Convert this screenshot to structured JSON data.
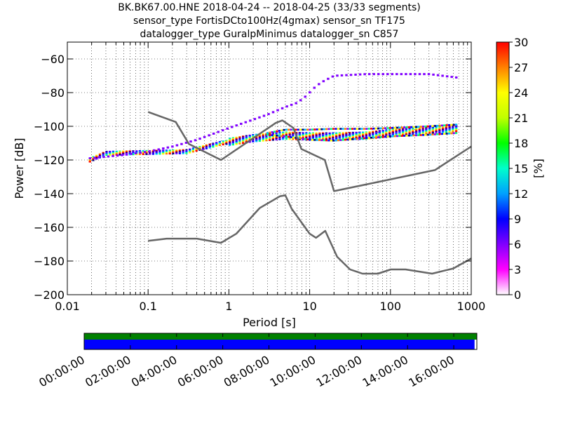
{
  "title": {
    "line1": "BK.BK67.00.HNE   2018-04-24 -- 2018-04-25  (33/33 segments)",
    "line2": "sensor_type FortisDCto100Hz(4gmax) sensor_sn TF175",
    "line3": "datalogger_type GuralpMinimus datalogger_sn C857"
  },
  "chart_data": {
    "type": "heatmap",
    "xlabel": "Period [s]",
    "ylabel": "Power [dB]",
    "xscale": "log",
    "xlim": [
      0.01,
      1000
    ],
    "ylim": [
      -200,
      -50
    ],
    "xticks": [
      0.01,
      0.1,
      1,
      10,
      100,
      1000
    ],
    "xtick_labels": [
      "0.01",
      "0.1",
      "1",
      "10",
      "100",
      "1000"
    ],
    "yticks": [
      -200,
      -180,
      -160,
      -140,
      -120,
      -100,
      -80,
      -60
    ],
    "ytick_labels": [
      "−200",
      "−180",
      "−160",
      "−140",
      "−120",
      "−100",
      "−80",
      "−60"
    ],
    "grid": true,
    "colorbar": {
      "label": "[%]",
      "range": [
        0,
        30
      ],
      "ticks": [
        0,
        3,
        6,
        9,
        12,
        15,
        18,
        21,
        24,
        27,
        30
      ],
      "colors": [
        "#ffffff",
        "#ff00ff",
        "#8000ff",
        "#0000ff",
        "#00a0ff",
        "#00ffcc",
        "#00ff00",
        "#c0ff00",
        "#ffff00",
        "#ff8000",
        "#ff0000"
      ]
    },
    "noise_models": [
      {
        "name": "high",
        "x": [
          0.1,
          0.22,
          0.32,
          0.8,
          3.8,
          4.6,
          6.3,
          7.9,
          15.4,
          20,
          354.8,
          1000
        ],
        "y": [
          -91.5,
          -97.4,
          -110.5,
          -120,
          -98,
          -96.5,
          -101,
          -113.5,
          -120,
          -138.5,
          -126,
          -112
        ]
      },
      {
        "name": "low",
        "x": [
          0.1,
          0.17,
          0.4,
          0.8,
          1.24,
          2.4,
          4.3,
          5,
          6,
          10,
          12,
          15.6,
          21.9,
          31.6,
          45,
          70,
          101,
          154,
          328,
          600,
          1000
        ],
        "y": [
          -168,
          -166.7,
          -166.7,
          -169.2,
          -163.7,
          -148.6,
          -141.5,
          -141,
          -149,
          -163.8,
          -166.2,
          -162.1,
          -177.5,
          -185,
          -187.5,
          -187.5,
          -185,
          -185,
          -187.5,
          -184.4,
          -178.5
        ]
      }
    ],
    "psd_bands": [
      {
        "name": "dominant-band",
        "x": [
          0.019,
          0.03,
          0.1,
          0.3,
          0.8,
          2,
          5,
          10,
          20,
          50,
          100,
          300,
          650
        ],
        "y": [
          -120,
          -116,
          -115.5,
          -115,
          -110,
          -107,
          -105.5,
          -106,
          -106,
          -105.5,
          -104,
          -102,
          -101
        ]
      },
      {
        "name": "upper-branch",
        "x": [
          0.019,
          0.05,
          0.1,
          0.2,
          0.4,
          1,
          2,
          3,
          5,
          7,
          9,
          12,
          15,
          20,
          50,
          100,
          300,
          650
        ],
        "y": [
          -119,
          -117,
          -115,
          -112,
          -108,
          -101,
          -96,
          -93,
          -88.5,
          -86,
          -82,
          -76,
          -73,
          -70,
          -69,
          -69,
          -69,
          -71
        ]
      },
      {
        "name": "mid-branch",
        "x": [
          3,
          5,
          10,
          20,
          50,
          100,
          300,
          650
        ],
        "y": [
          -104,
          -102,
          -102,
          -101.5,
          -101.5,
          -101,
          -100,
          -99
        ]
      },
      {
        "name": "lower-branch",
        "x": [
          3,
          5,
          10,
          20,
          50,
          100,
          300,
          650
        ],
        "y": [
          -105,
          -106,
          -108,
          -108.5,
          -107,
          -106,
          -105,
          -104
        ]
      }
    ]
  },
  "timeline": {
    "labels": [
      "00:00:00",
      "02:00:00",
      "04:00:00",
      "06:00:00",
      "08:00:00",
      "10:00:00",
      "12:00:00",
      "14:00:00",
      "16:00:00"
    ],
    "range_hours": [
      0,
      17
    ],
    "top_bar": {
      "color": "#008000",
      "start_hour": 0,
      "end_hour": 17
    },
    "bottom_bar": {
      "color": "#0000ff",
      "start_hour": 0,
      "end_hour": 16.9
    }
  }
}
